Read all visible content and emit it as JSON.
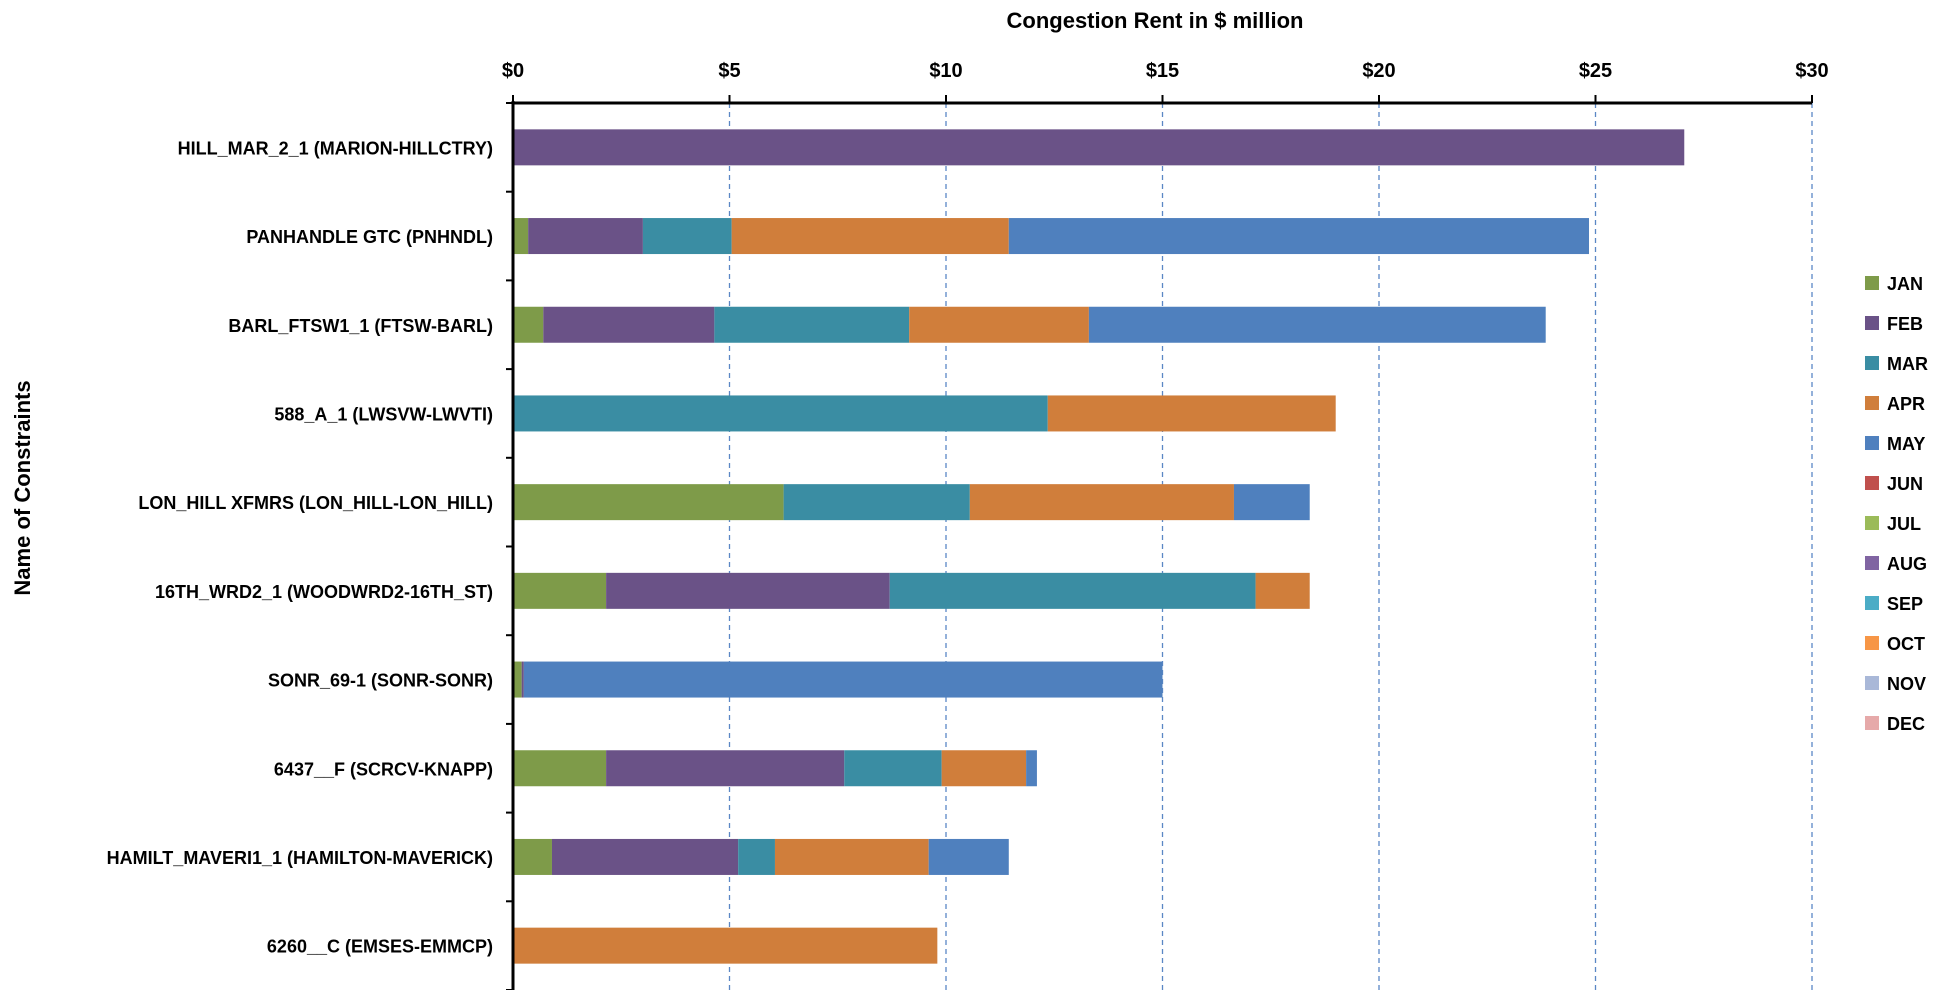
{
  "chart_data": {
    "type": "bar",
    "orientation": "horizontal",
    "stacked": true,
    "title": "Congestion Rent in $ million",
    "xlabel": "Congestion Rent in $ million",
    "ylabel": "Name of Constraints",
    "xlim": [
      0,
      30
    ],
    "xticks": [
      0,
      5,
      10,
      15,
      20,
      25,
      30
    ],
    "xtick_labels": [
      "$0",
      "$5",
      "$10",
      "$15",
      "$20",
      "$25",
      "$30"
    ],
    "grid": "vertical dashed",
    "legend_position": "right",
    "categories": [
      "HILL_MAR_2_1 (MARION-HILLCTRY)",
      "PANHANDLE GTC (PNHNDL)",
      "BARL_FTSW1_1 (FTSW-BARL)",
      "588_A_1 (LWSVW-LWVTI)",
      "LON_HILL XFMRS (LON_HILL-LON_HILL)",
      "16TH_WRD2_1 (WOODWRD2-16TH_ST)",
      "SONR_69-1 (SONR-SONR)",
      "6437__F (SCRCV-KNAPP)",
      "HAMILT_MAVERI1_1 (HAMILTON-MAVERICK)",
      "6260__C (EMSES-EMMCP)"
    ],
    "series": [
      {
        "name": "JAN",
        "color": "#7E9B49",
        "values": [
          0,
          0.35,
          0.7,
          0,
          6.25,
          2.15,
          0.2,
          2.15,
          0.9,
          0
        ]
      },
      {
        "name": "FEB",
        "color": "#6A5287",
        "values": [
          27.05,
          2.65,
          3.95,
          0,
          0,
          6.55,
          0.05,
          5.5,
          4.3,
          0
        ]
      },
      {
        "name": "MAR",
        "color": "#3A8DA3",
        "values": [
          0,
          2.05,
          4.5,
          12.35,
          4.3,
          8.45,
          0,
          2.25,
          0.85,
          0
        ]
      },
      {
        "name": "APR",
        "color": "#D07E3B",
        "values": [
          0,
          6.4,
          4.15,
          6.65,
          6.1,
          1.25,
          0,
          1.95,
          3.55,
          9.8
        ]
      },
      {
        "name": "MAY",
        "color": "#4F80BE",
        "values": [
          0,
          13.4,
          10.55,
          0,
          1.75,
          0,
          14.75,
          0.25,
          1.85,
          0
        ]
      },
      {
        "name": "JUN",
        "color": "#C0504D",
        "values": [
          0,
          0,
          0,
          0,
          0,
          0,
          0,
          0,
          0,
          0
        ]
      },
      {
        "name": "JUL",
        "color": "#9BBB59",
        "values": [
          0,
          0,
          0,
          0,
          0,
          0,
          0,
          0,
          0,
          0
        ]
      },
      {
        "name": "AUG",
        "color": "#8064A2",
        "values": [
          0,
          0,
          0,
          0,
          0,
          0,
          0,
          0,
          0,
          0
        ]
      },
      {
        "name": "SEP",
        "color": "#4BACC6",
        "values": [
          0,
          0,
          0,
          0,
          0,
          0,
          0,
          0,
          0,
          0
        ]
      },
      {
        "name": "OCT",
        "color": "#F79646",
        "values": [
          0,
          0,
          0,
          0,
          0,
          0,
          0,
          0,
          0,
          0
        ]
      },
      {
        "name": "NOV",
        "color": "#A9B8D8",
        "values": [
          0,
          0,
          0,
          0,
          0,
          0,
          0,
          0,
          0,
          0
        ]
      },
      {
        "name": "DEC",
        "color": "#E6A9A9",
        "values": [
          0,
          0,
          0,
          0,
          0,
          0,
          0,
          0,
          0,
          0
        ]
      }
    ]
  }
}
